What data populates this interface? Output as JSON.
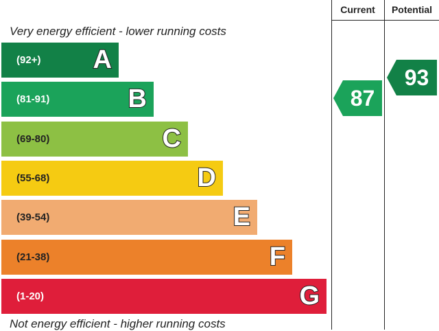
{
  "headers": {
    "current": "Current",
    "potential": "Potential"
  },
  "captions": {
    "top": "Very energy efficient - lower running costs",
    "bottom": "Not energy efficient - higher running costs"
  },
  "chart_data": {
    "type": "bar",
    "categories": [
      "A",
      "B",
      "C",
      "D",
      "E",
      "F",
      "G"
    ],
    "bands": [
      {
        "letter": "A",
        "range": "(92+)",
        "min": 92,
        "max": 100,
        "color": "#128147"
      },
      {
        "letter": "B",
        "range": "(81-91)",
        "min": 81,
        "max": 91,
        "color": "#1ba35a"
      },
      {
        "letter": "C",
        "range": "(69-80)",
        "min": 69,
        "max": 80,
        "color": "#8dc044"
      },
      {
        "letter": "D",
        "range": "(55-68)",
        "min": 55,
        "max": 68,
        "color": "#f5cb12"
      },
      {
        "letter": "E",
        "range": "(39-54)",
        "min": 39,
        "max": 54,
        "color": "#f1ab71"
      },
      {
        "letter": "F",
        "range": "(21-38)",
        "min": 21,
        "max": 38,
        "color": "#ec812a"
      },
      {
        "letter": "G",
        "range": "(1-20)",
        "min": 1,
        "max": 20,
        "color": "#df1e3a"
      }
    ],
    "current": {
      "value": 87,
      "band": "B",
      "color": "#1ba35a"
    },
    "potential": {
      "value": 93,
      "band": "A",
      "color": "#128147"
    }
  }
}
